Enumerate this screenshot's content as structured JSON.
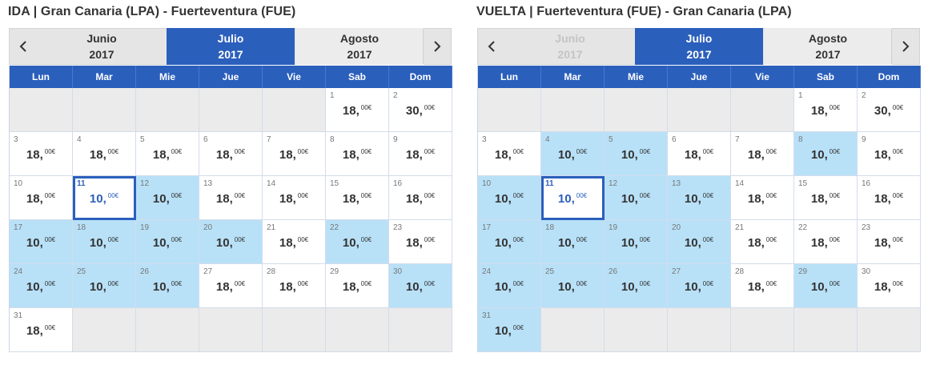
{
  "colors": {
    "accent": "#2b5fbc",
    "cheap_day": "#b8e1f8",
    "empty_day": "#ebebeb",
    "nav_bg": "#e5e5e5"
  },
  "weekdays": [
    "Lun",
    "Mar",
    "Mie",
    "Jue",
    "Vie",
    "Sab",
    "Dom"
  ],
  "panels": [
    {
      "title": "IDA | Gran Canaria (LPA) - Fuerteventura (FUE)",
      "months": [
        {
          "name": "Junio",
          "year": "2017",
          "state": "normal"
        },
        {
          "name": "Julio",
          "year": "2017",
          "state": "active"
        },
        {
          "name": "Agosto",
          "year": "2017",
          "state": "normal"
        }
      ],
      "leading_blank": 5,
      "selected_day": "11",
      "days": [
        {
          "d": "1",
          "price": "18,",
          "dec": "00€",
          "cheap": false
        },
        {
          "d": "2",
          "price": "30,",
          "dec": "00€",
          "cheap": false
        },
        {
          "d": "3",
          "price": "18,",
          "dec": "00€",
          "cheap": false
        },
        {
          "d": "4",
          "price": "18,",
          "dec": "00€",
          "cheap": false
        },
        {
          "d": "5",
          "price": "18,",
          "dec": "00€",
          "cheap": false
        },
        {
          "d": "6",
          "price": "18,",
          "dec": "00€",
          "cheap": false
        },
        {
          "d": "7",
          "price": "18,",
          "dec": "00€",
          "cheap": false
        },
        {
          "d": "8",
          "price": "18,",
          "dec": "00€",
          "cheap": false
        },
        {
          "d": "9",
          "price": "18,",
          "dec": "00€",
          "cheap": false
        },
        {
          "d": "10",
          "price": "18,",
          "dec": "00€",
          "cheap": false
        },
        {
          "d": "11",
          "price": "10,",
          "dec": "00€",
          "cheap": false
        },
        {
          "d": "12",
          "price": "10,",
          "dec": "00€",
          "cheap": true
        },
        {
          "d": "13",
          "price": "18,",
          "dec": "00€",
          "cheap": false
        },
        {
          "d": "14",
          "price": "18,",
          "dec": "00€",
          "cheap": false
        },
        {
          "d": "15",
          "price": "18,",
          "dec": "00€",
          "cheap": false
        },
        {
          "d": "16",
          "price": "18,",
          "dec": "00€",
          "cheap": false
        },
        {
          "d": "17",
          "price": "10,",
          "dec": "00€",
          "cheap": true
        },
        {
          "d": "18",
          "price": "10,",
          "dec": "00€",
          "cheap": true
        },
        {
          "d": "19",
          "price": "10,",
          "dec": "00€",
          "cheap": true
        },
        {
          "d": "20",
          "price": "10,",
          "dec": "00€",
          "cheap": true
        },
        {
          "d": "21",
          "price": "18,",
          "dec": "00€",
          "cheap": false
        },
        {
          "d": "22",
          "price": "10,",
          "dec": "00€",
          "cheap": true
        },
        {
          "d": "23",
          "price": "18,",
          "dec": "00€",
          "cheap": false
        },
        {
          "d": "24",
          "price": "10,",
          "dec": "00€",
          "cheap": true
        },
        {
          "d": "25",
          "price": "10,",
          "dec": "00€",
          "cheap": true
        },
        {
          "d": "26",
          "price": "10,",
          "dec": "00€",
          "cheap": true
        },
        {
          "d": "27",
          "price": "18,",
          "dec": "00€",
          "cheap": false
        },
        {
          "d": "28",
          "price": "18,",
          "dec": "00€",
          "cheap": false
        },
        {
          "d": "29",
          "price": "18,",
          "dec": "00€",
          "cheap": false
        },
        {
          "d": "30",
          "price": "10,",
          "dec": "00€",
          "cheap": true
        },
        {
          "d": "31",
          "price": "18,",
          "dec": "00€",
          "cheap": false
        }
      ]
    },
    {
      "title": "VUELTA | Fuerteventura (FUE) - Gran Canaria (LPA)",
      "months": [
        {
          "name": "Junio",
          "year": "2017",
          "state": "disabled"
        },
        {
          "name": "Julio",
          "year": "2017",
          "state": "active"
        },
        {
          "name": "Agosto",
          "year": "2017",
          "state": "normal"
        }
      ],
      "leading_blank": 5,
      "selected_day": "11",
      "days": [
        {
          "d": "1",
          "price": "18,",
          "dec": "00€",
          "cheap": false
        },
        {
          "d": "2",
          "price": "30,",
          "dec": "00€",
          "cheap": false
        },
        {
          "d": "3",
          "price": "18,",
          "dec": "00€",
          "cheap": false
        },
        {
          "d": "4",
          "price": "10,",
          "dec": "00€",
          "cheap": true
        },
        {
          "d": "5",
          "price": "10,",
          "dec": "00€",
          "cheap": true
        },
        {
          "d": "6",
          "price": "18,",
          "dec": "00€",
          "cheap": false
        },
        {
          "d": "7",
          "price": "18,",
          "dec": "00€",
          "cheap": false
        },
        {
          "d": "8",
          "price": "10,",
          "dec": "00€",
          "cheap": true
        },
        {
          "d": "9",
          "price": "18,",
          "dec": "00€",
          "cheap": false
        },
        {
          "d": "10",
          "price": "10,",
          "dec": "00€",
          "cheap": true
        },
        {
          "d": "11",
          "price": "10,",
          "dec": "00€",
          "cheap": false
        },
        {
          "d": "12",
          "price": "10,",
          "dec": "00€",
          "cheap": true
        },
        {
          "d": "13",
          "price": "10,",
          "dec": "00€",
          "cheap": true
        },
        {
          "d": "14",
          "price": "18,",
          "dec": "00€",
          "cheap": false
        },
        {
          "d": "15",
          "price": "18,",
          "dec": "00€",
          "cheap": false
        },
        {
          "d": "16",
          "price": "18,",
          "dec": "00€",
          "cheap": false
        },
        {
          "d": "17",
          "price": "10,",
          "dec": "00€",
          "cheap": true
        },
        {
          "d": "18",
          "price": "10,",
          "dec": "00€",
          "cheap": true
        },
        {
          "d": "19",
          "price": "10,",
          "dec": "00€",
          "cheap": true
        },
        {
          "d": "20",
          "price": "10,",
          "dec": "00€",
          "cheap": true
        },
        {
          "d": "21",
          "price": "18,",
          "dec": "00€",
          "cheap": false
        },
        {
          "d": "22",
          "price": "18,",
          "dec": "00€",
          "cheap": false
        },
        {
          "d": "23",
          "price": "18,",
          "dec": "00€",
          "cheap": false
        },
        {
          "d": "24",
          "price": "10,",
          "dec": "00€",
          "cheap": true
        },
        {
          "d": "25",
          "price": "10,",
          "dec": "00€",
          "cheap": true
        },
        {
          "d": "26",
          "price": "10,",
          "dec": "00€",
          "cheap": true
        },
        {
          "d": "27",
          "price": "10,",
          "dec": "00€",
          "cheap": true
        },
        {
          "d": "28",
          "price": "18,",
          "dec": "00€",
          "cheap": false
        },
        {
          "d": "29",
          "price": "10,",
          "dec": "00€",
          "cheap": true
        },
        {
          "d": "30",
          "price": "18,",
          "dec": "00€",
          "cheap": false
        },
        {
          "d": "31",
          "price": "10,",
          "dec": "00€",
          "cheap": true
        }
      ]
    }
  ]
}
